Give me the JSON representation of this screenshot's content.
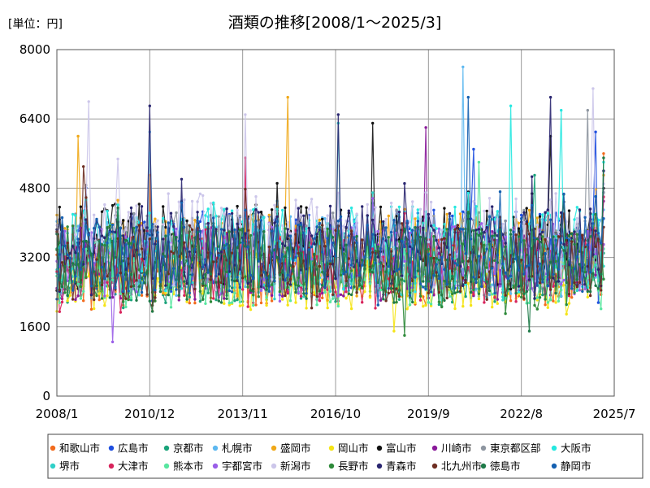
{
  "chart_data": {
    "type": "line",
    "title": "酒類の推移[2008/1～2025/3]",
    "unit_label": "[単位：円]",
    "xlabel": "",
    "ylabel": "",
    "x_range": [
      "2008/1",
      "2025/7"
    ],
    "x_ticks": [
      "2008/1",
      "2010/12",
      "2013/11",
      "2016/10",
      "2019/9",
      "2022/8",
      "2025/7"
    ],
    "ylim": [
      0,
      8000
    ],
    "y_ticks": [
      "0",
      "1600",
      "3200",
      "4800",
      "6400",
      "8000"
    ],
    "grid": true,
    "legend_position": "bottom",
    "series": [
      {
        "name": "和歌山市",
        "color": "#f26b1d",
        "base": 2950,
        "amp": 850,
        "end": 5600,
        "peaks": [
          [
            "2010/12",
            5100
          ]
        ]
      },
      {
        "name": "広島市",
        "color": "#1f4fe0",
        "base": 3350,
        "amp": 950,
        "end": 4700,
        "peaks": [
          [
            "2024/12",
            6100
          ],
          [
            "2021/2",
            5700
          ]
        ]
      },
      {
        "name": "京都市",
        "color": "#1aa37a",
        "base": 3000,
        "amp": 850,
        "end": 3300,
        "peaks": [
          [
            "2023/1",
            5100
          ]
        ]
      },
      {
        "name": "札幌市",
        "color": "#5db8f0",
        "base": 3250,
        "amp": 950,
        "end": 4300,
        "peaks": [
          [
            "2020/10",
            7600
          ],
          [
            "2010/12",
            6100
          ]
        ]
      },
      {
        "name": "盛岡市",
        "color": "#f0a818",
        "base": 3300,
        "amp": 1000,
        "end": 5100,
        "peaks": [
          [
            "2015/4",
            6900
          ],
          [
            "2008/9",
            6000
          ]
        ]
      },
      {
        "name": "岡山市",
        "color": "#f5e416",
        "base": 2650,
        "amp": 650,
        "end": 3500,
        "peaks": [
          [
            "2018/8",
            1500
          ]
        ]
      },
      {
        "name": "富山市",
        "color": "#111111",
        "base": 3450,
        "amp": 1000,
        "end": 4800,
        "peaks": [
          [
            "2017/12",
            6300
          ],
          [
            "2023/7",
            6000
          ]
        ]
      },
      {
        "name": "川崎市",
        "color": "#8a1a9a",
        "base": 3050,
        "amp": 850,
        "end": 4500,
        "peaks": [
          [
            "2019/8",
            6200
          ]
        ]
      },
      {
        "name": "東京都区部",
        "color": "#8e96a0",
        "base": 3350,
        "amp": 950,
        "end": 4700,
        "peaks": [
          [
            "2024/9",
            6600
          ]
        ]
      },
      {
        "name": "大阪市",
        "color": "#25e8e0",
        "base": 3400,
        "amp": 1000,
        "end": 5400,
        "peaks": [
          [
            "2022/4",
            6700
          ],
          [
            "2023/11",
            6600
          ]
        ]
      },
      {
        "name": "堺市",
        "color": "#30d0c8",
        "base": 3100,
        "amp": 900,
        "end": 3000,
        "peaks": [
          [
            "2016/11",
            6300
          ]
        ]
      },
      {
        "name": "大津市",
        "color": "#d8245c",
        "base": 3000,
        "amp": 850,
        "end": 4600,
        "peaks": [
          [
            "2013/12",
            5500
          ]
        ]
      },
      {
        "name": "熊本市",
        "color": "#58e6a0",
        "base": 2850,
        "amp": 800,
        "end": 3400,
        "peaks": [
          [
            "2021/4",
            5400
          ]
        ]
      },
      {
        "name": "宇都宮市",
        "color": "#9a5ee8",
        "base": 3150,
        "amp": 850,
        "end": 3500,
        "peaks": [
          [
            "2009/10",
            1250
          ]
        ]
      },
      {
        "name": "新潟市",
        "color": "#ccc6ea",
        "base": 3600,
        "amp": 1100,
        "end": 4900,
        "peaks": [
          [
            "2009/1",
            6800
          ],
          [
            "2013/12",
            6500
          ],
          [
            "2024/11",
            7100
          ]
        ]
      },
      {
        "name": "長野市",
        "color": "#2e8a3a",
        "base": 3050,
        "amp": 900,
        "end": 2700,
        "peaks": [
          [
            "2018/12",
            1400
          ]
        ]
      },
      {
        "name": "青森市",
        "color": "#2a2670",
        "base": 3450,
        "amp": 950,
        "end": 5200,
        "peaks": [
          [
            "2010/12",
            6700
          ],
          [
            "2023/7",
            6900
          ],
          [
            "2016/11",
            6500
          ]
        ]
      },
      {
        "name": "北九州市",
        "color": "#6e2e22",
        "base": 3100,
        "amp": 900,
        "end": 3900,
        "peaks": [
          [
            "2008/11",
            5300
          ]
        ]
      },
      {
        "name": "徳島市",
        "color": "#1e7a48",
        "base": 3000,
        "amp": 900,
        "end": 5500,
        "peaks": [
          [
            "2022/11",
            1500
          ]
        ]
      },
      {
        "name": "静岡市",
        "color": "#1560b0",
        "base": 3250,
        "amp": 900,
        "end": 4100,
        "peaks": [
          [
            "2020/12",
            6900
          ]
        ]
      }
    ]
  }
}
